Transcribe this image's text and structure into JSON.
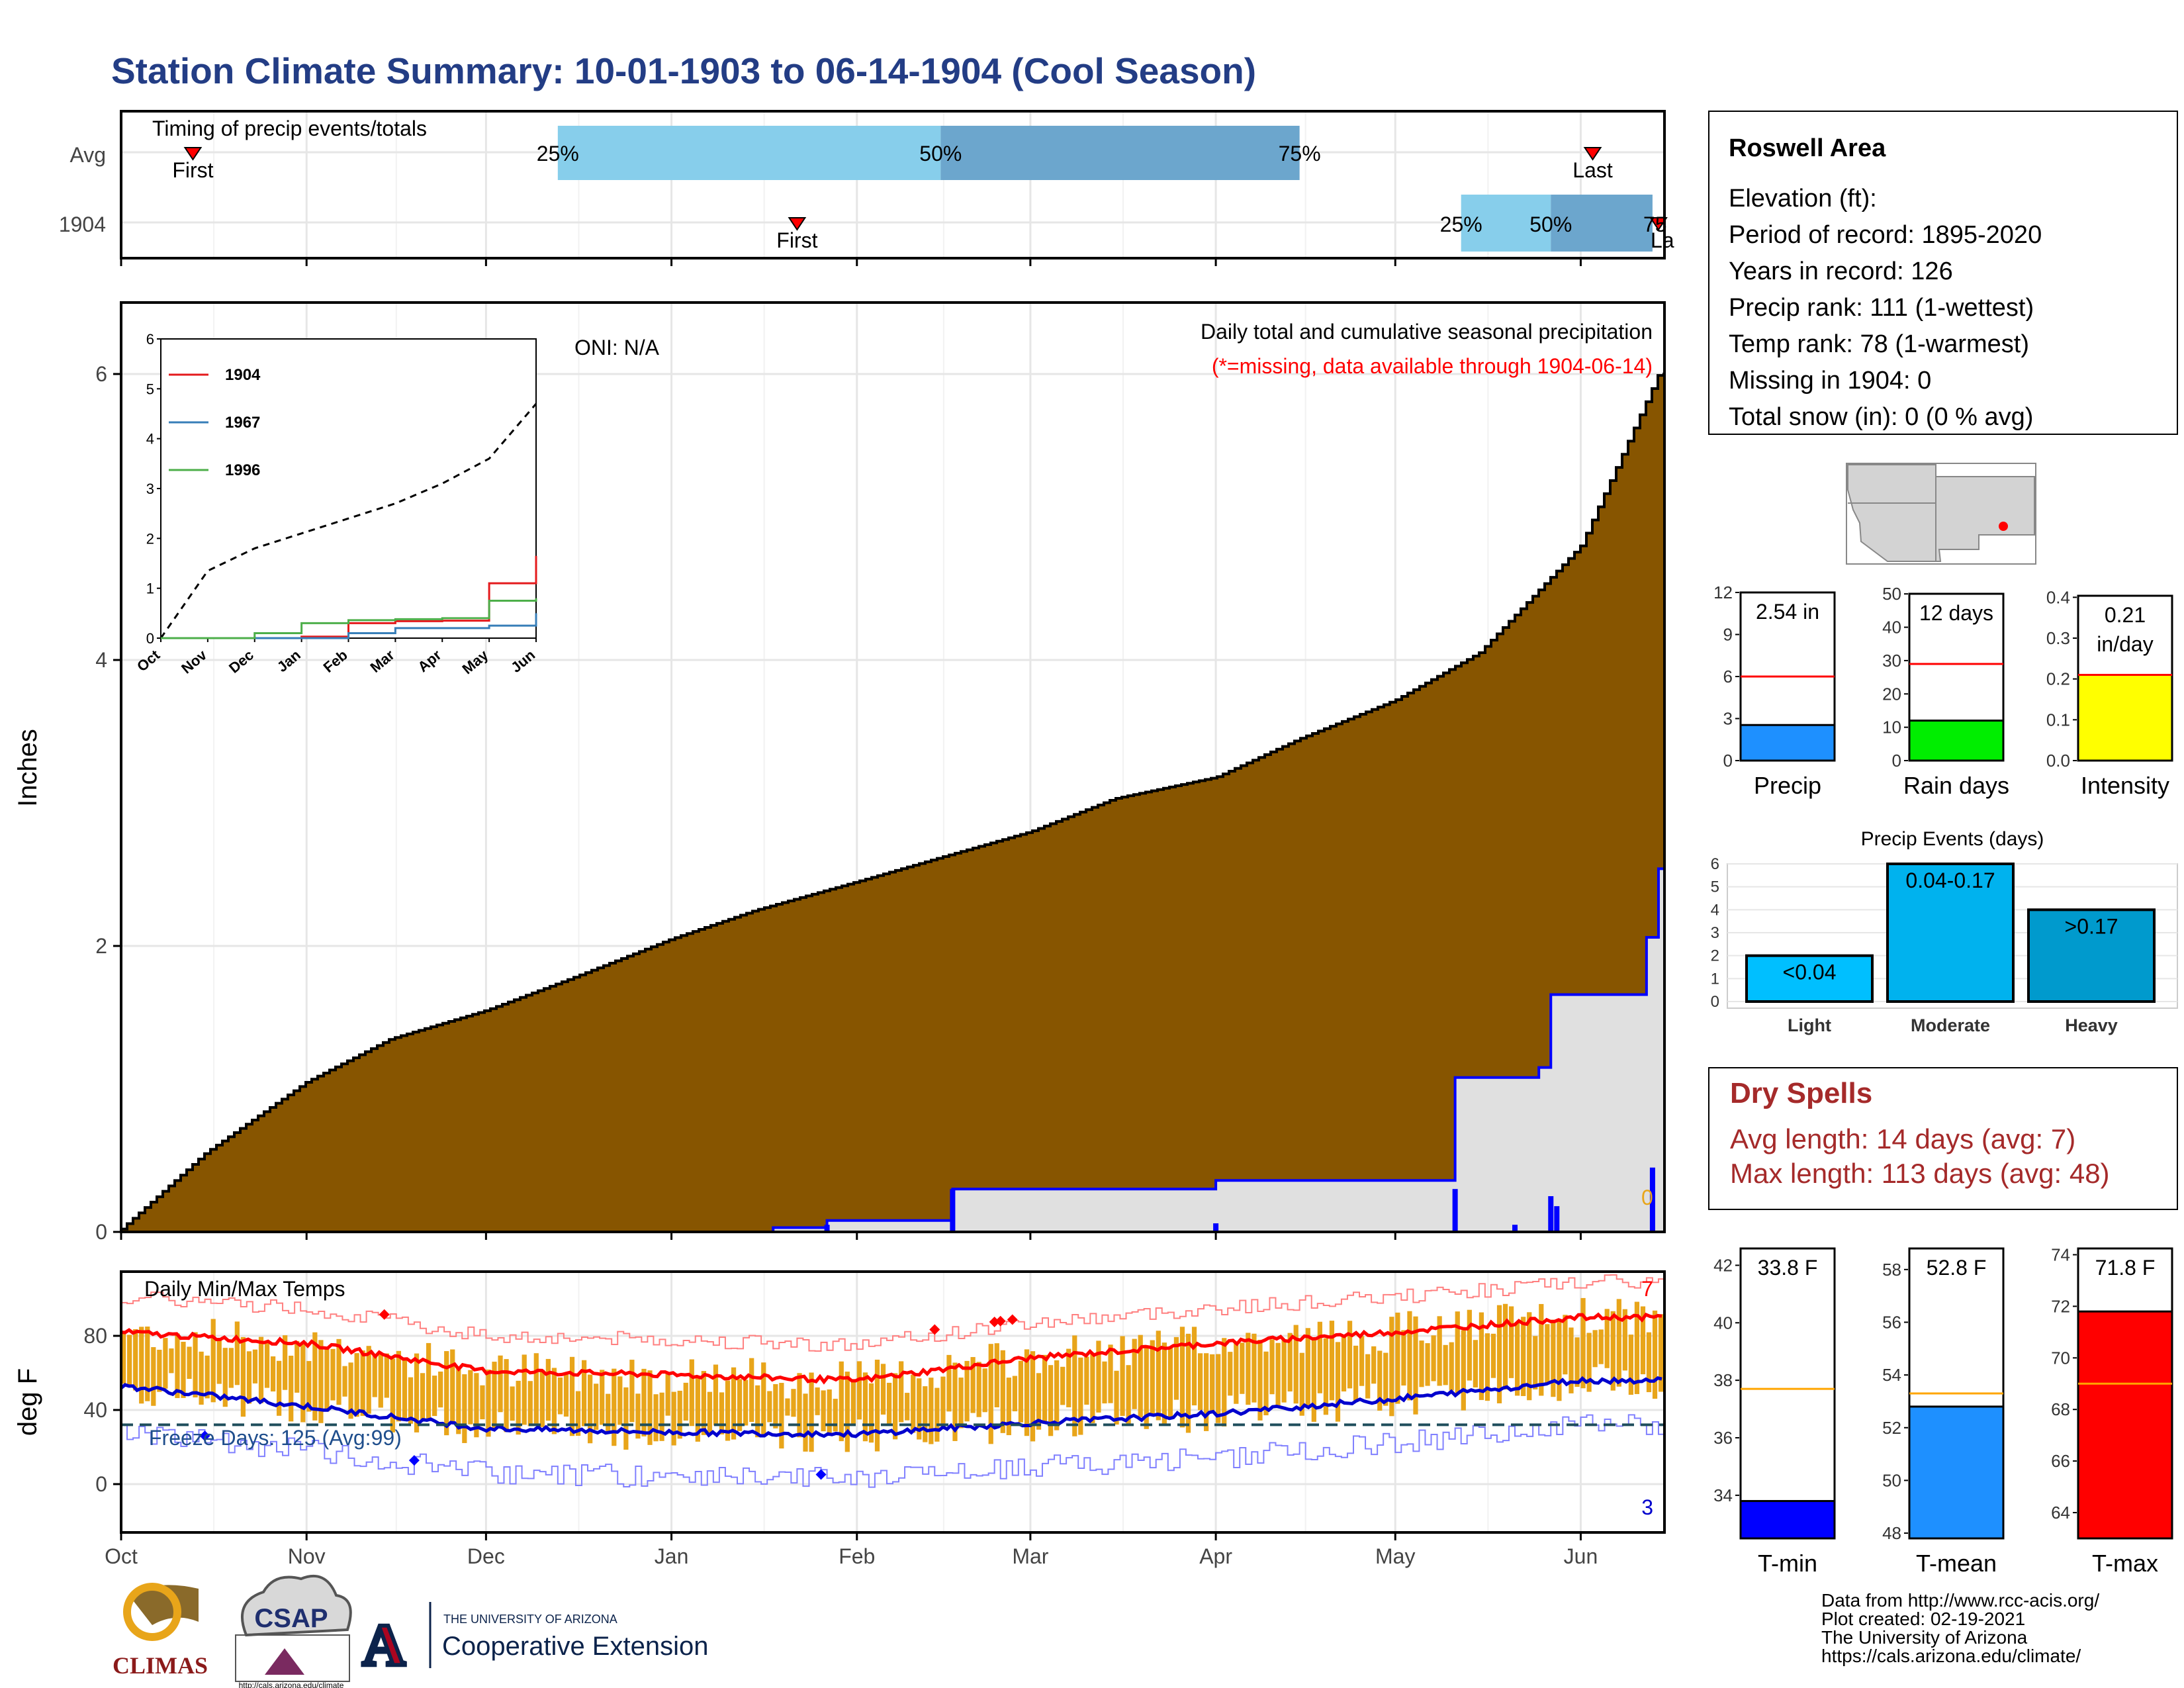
{
  "title": "Station Climate Summary: 10-01-1903 to 06-14-1904 (Cool Season)",
  "timing": {
    "label": "Timing of precip events/totals",
    "rows": [
      "Avg",
      "1904"
    ],
    "first_label": "First",
    "last_label": "Last",
    "last_label_clipped": "La",
    "pct_labels": [
      "25%",
      "50%",
      "75%"
    ],
    "pct_label_clipped": "75",
    "avg": {
      "first": "1903-10-13",
      "q25": "1903-12-13",
      "q50": "1904-02-15",
      "q75": "1904-04-15",
      "last": "1904-06-03"
    },
    "y1904": {
      "first": "1904-01-22",
      "q25": "1904-05-12",
      "q50": "1904-05-27",
      "q75": "1904-06-13",
      "last": "1904-06-14"
    }
  },
  "precip_panel": {
    "ylabel": "Inches",
    "oni": "ONI: N/A",
    "subtitle1": "Daily total and cumulative seasonal precipitation",
    "subtitle2": "(*=missing, data available through 1904-06-14)",
    "corner_note": "0",
    "y_ticks": [
      "0",
      "2",
      "4",
      "6"
    ]
  },
  "inset": {
    "legend": [
      "1904",
      "1967",
      "1996"
    ],
    "y_ticks": [
      "0",
      "1",
      "2",
      "3",
      "4",
      "5",
      "6"
    ],
    "x_ticks": [
      "Oct",
      "Nov",
      "Dec",
      "Jan",
      "Feb",
      "Mar",
      "Apr",
      "May",
      "Jun"
    ]
  },
  "temp_panel": {
    "title": "Daily Min/Max Temps",
    "ylabel": "deg F",
    "freeze": "Freeze Days: 125 (Avg:99)",
    "count_max": "7",
    "count_min": "3",
    "y_ticks": [
      "0",
      "40",
      "80"
    ]
  },
  "x_axis": [
    "Oct",
    "Nov",
    "Dec",
    "Jan",
    "Feb",
    "Mar",
    "Apr",
    "May",
    "Jun"
  ],
  "station": {
    "name": "Roswell Area",
    "lines": [
      "Elevation (ft):",
      "Period of record: 1895-2020",
      "Years in record: 126",
      "Precip rank: 111 (1-wettest)",
      "Temp rank: 78 (1-warmest)",
      "Missing in 1904: 0",
      "Total snow (in): 0 (0 % avg)"
    ]
  },
  "mini_precip": [
    {
      "label": "Precip",
      "value_label": "2.54 in",
      "value_label2": "",
      "ticks": [
        "0",
        "3",
        "6",
        "9",
        "12"
      ]
    },
    {
      "label": "Rain days",
      "value_label": "12 days",
      "value_label2": "",
      "ticks": [
        "0",
        "10",
        "20",
        "30",
        "40",
        "50"
      ]
    },
    {
      "label": "Intensity",
      "value_label": "0.21",
      "value_label2": "in/day",
      "ticks": [
        "0.0",
        "0.1",
        "0.2",
        "0.3",
        "0.4"
      ]
    }
  ],
  "events": {
    "title": "Precip Events (days)",
    "categories": [
      "Light",
      "Moderate",
      "Heavy"
    ],
    "bar_labels": [
      "<0.04",
      "0.04-0.17",
      ">0.17"
    ],
    "ticks": [
      "0",
      "1",
      "2",
      "3",
      "4",
      "5",
      "6"
    ]
  },
  "dry": {
    "title": "Dry Spells",
    "avg": "Avg length: 14 days (avg: 7)",
    "max": "Max length: 113 days (avg: 48)"
  },
  "mini_temp": [
    {
      "label": "T-min",
      "value_label": "33.8 F",
      "ticks": [
        "34",
        "36",
        "38",
        "40",
        "42"
      ]
    },
    {
      "label": "T-mean",
      "value_label": "52.8 F",
      "ticks": [
        "48",
        "50",
        "52",
        "54",
        "56",
        "58"
      ]
    },
    {
      "label": "T-max",
      "value_label": "71.8 F",
      "ticks": [
        "64",
        "66",
        "68",
        "70",
        "72",
        "74"
      ]
    }
  ],
  "logos": {
    "climas": "CLIMAS",
    "csap": "CSAP",
    "csap_url": "http://cals.arizona.edu/climate",
    "ua_small": "THE UNIVERSITY OF ARIZONA",
    "ua_big": "Cooperative Extension",
    "ua_letter": "A"
  },
  "footer": [
    "Data from http://www.rcc-acis.org/",
    "Plot created: 02-19-2021",
    "The University of Arizona",
    "https://cals.arizona.edu/climate/"
  ],
  "colors": {
    "title": "#233d85",
    "cumulative": "#875500",
    "daily": "#0000ff",
    "tmax": "#ff0000",
    "tmin": "#0000cd",
    "bars": "#e8a51a",
    "dry": "#a52a2a",
    "precip_bar": "#1e90ff",
    "raindays_bar": "#00ee00",
    "intensity_bar": "#ffff00",
    "light": "#00bfff",
    "moderate": "#00b2ee",
    "heavy": "#009acd"
  },
  "chart_data": [
    {
      "type": "area",
      "title": "Daily total and cumulative seasonal precipitation",
      "ylabel": "Inches",
      "ylim": [
        0,
        6.5
      ],
      "series": [
        {
          "name": "",
          "x": [
            "1903-10-01",
            "1903-10-15",
            "1903-11-01",
            "1903-11-15",
            "1903-12-01",
            "1903-12-15",
            "1904-01-01",
            "1904-01-15",
            "1904-02-01",
            "1904-02-15",
            "1904-03-01",
            "1904-03-15",
            "1904-04-01",
            "1904-04-15",
            "1904-05-01",
            "1904-05-15",
            "1904-06-01",
            "1904-06-14"
          ],
          "y": [
            0.02,
            0.55,
            1.05,
            1.35,
            1.55,
            1.77,
            2.05,
            2.25,
            2.45,
            2.62,
            2.8,
            3.03,
            3.18,
            3.45,
            3.72,
            4.05,
            4.8,
            6.0
          ]
        },
        {
          "name": "",
          "x": [
            "1903-10-01",
            "1904-01-18",
            "1904-01-27",
            "1904-02-17",
            "1904-04-01",
            "1904-05-11",
            "1904-05-25",
            "1904-05-27",
            "1904-06-11",
            "1904-06-12",
            "1904-06-14"
          ],
          "y": [
            0.0,
            0.03,
            0.08,
            0.3,
            0.36,
            1.08,
            1.15,
            1.66,
            1.66,
            2.06,
            2.54
          ]
        }
      ]
    },
    {
      "type": "line",
      "xlabel": "",
      "ylabel": "",
      "categories": [
        "Oct",
        "Nov",
        "Dec",
        "Jan",
        "Feb",
        "Mar",
        "Apr",
        "May",
        "Jun"
      ],
      "ylim": [
        0,
        6
      ],
      "series": [
        {
          "name": "",
          "values": [
            0.0,
            1.35,
            1.8,
            2.1,
            2.4,
            2.7,
            3.1,
            3.6,
            4.7
          ]
        },
        {
          "name": "1904",
          "values": [
            0.0,
            0.0,
            0.0,
            0.03,
            0.3,
            0.34,
            0.35,
            1.1,
            1.65
          ]
        },
        {
          "name": "1967",
          "values": [
            0.0,
            0.0,
            0.0,
            0.0,
            0.1,
            0.2,
            0.2,
            0.25,
            0.5
          ]
        },
        {
          "name": "1996",
          "values": [
            0.0,
            0.0,
            0.1,
            0.3,
            0.36,
            0.38,
            0.4,
            0.75,
            0.8
          ]
        }
      ]
    },
    {
      "type": "line",
      "title": "Daily Min/Max Temps",
      "ylabel": "deg F",
      "ylim": [
        -30,
        115
      ],
      "series": [
        {
          "name": "",
          "x": [
            "Oct",
            "Nov",
            "Dec",
            "Jan",
            "Feb",
            "Mar",
            "Apr",
            "May",
            "Jun"
          ],
          "values": [
            82,
            76,
            61,
            59,
            56,
            68,
            76,
            82,
            90
          ]
        },
        {
          "name": "",
          "x": [
            "Oct",
            "Nov",
            "Dec",
            "Jan",
            "Feb",
            "Mar",
            "Apr",
            "May",
            "Jun"
          ],
          "values": [
            53,
            42,
            30,
            28,
            27,
            33,
            38,
            46,
            56
          ]
        },
        {
          "name": "",
          "x": [
            "Oct",
            "Nov",
            "Dec",
            "Jan",
            "Feb",
            "Mar",
            "Apr",
            "May",
            "Jun"
          ],
          "values": [
            32,
            32,
            32,
            32,
            32,
            32,
            32,
            32,
            32
          ]
        }
      ]
    },
    {
      "type": "bar",
      "categories": [
        "Precip"
      ],
      "values": [
        2.54
      ],
      "ylim": [
        0,
        12
      ]
    },
    {
      "type": "bar",
      "categories": [
        "Rain days"
      ],
      "values": [
        12
      ],
      "ylim": [
        0,
        55
      ]
    },
    {
      "type": "bar",
      "categories": [
        "Intensity"
      ],
      "values": [
        0.21
      ],
      "ylim": [
        0,
        0.42
      ]
    },
    {
      "type": "bar",
      "title": "Precip Events (days)",
      "categories": [
        "Light",
        "Moderate",
        "Heavy"
      ],
      "values": [
        2,
        6,
        4
      ],
      "ylim": [
        0,
        6
      ]
    },
    {
      "type": "bar",
      "categories": [
        "T-min"
      ],
      "values": [
        33.8
      ],
      "ylim": [
        32.5,
        43
      ]
    },
    {
      "type": "bar",
      "categories": [
        "T-mean"
      ],
      "values": [
        52.8
      ],
      "ylim": [
        47.8,
        59
      ]
    },
    {
      "type": "bar",
      "categories": [
        "T-max"
      ],
      "values": [
        71.8
      ],
      "ylim": [
        63,
        74.5
      ]
    }
  ]
}
